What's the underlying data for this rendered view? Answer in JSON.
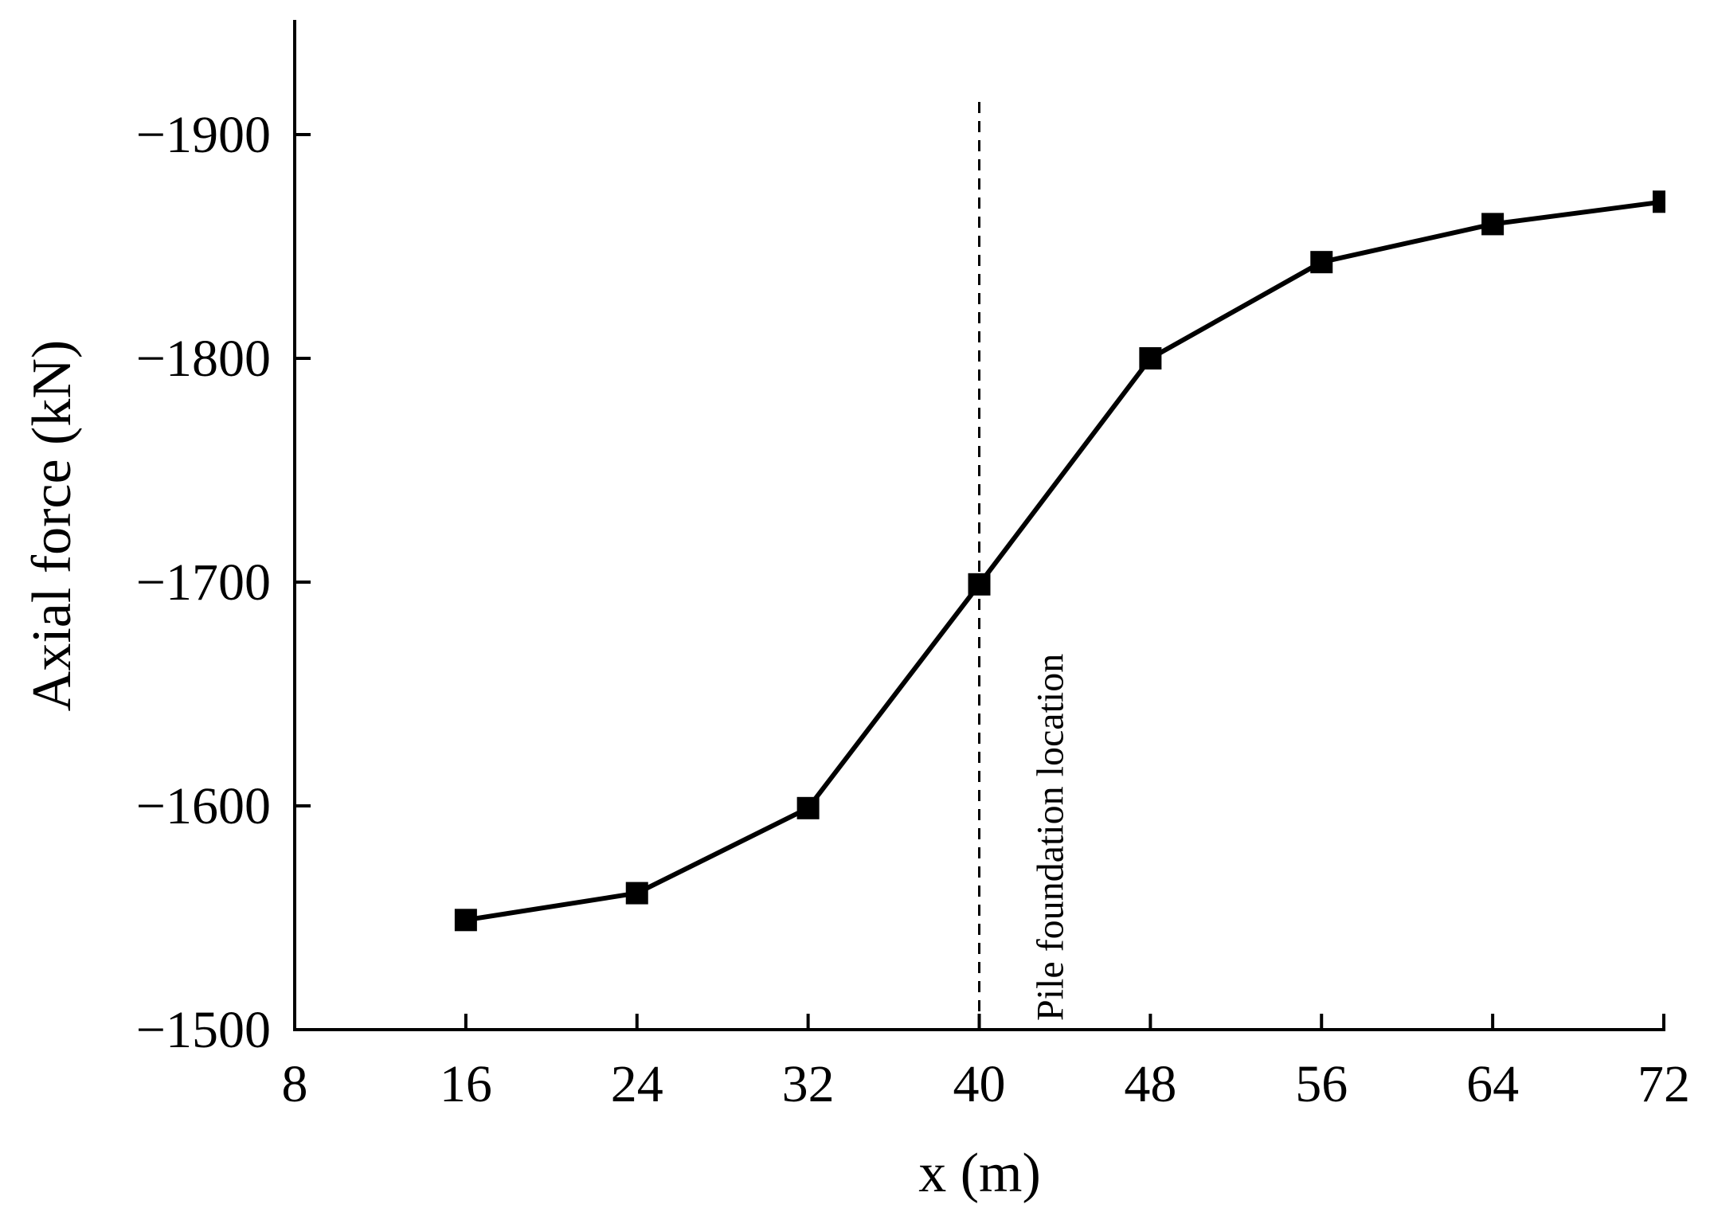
{
  "chart_data": {
    "type": "line",
    "title": "",
    "xlabel": "x (m)",
    "ylabel": "Axial force (kN)",
    "xlim": [
      8,
      72
    ],
    "ylim": [
      -1500,
      -1950
    ],
    "y_axis_inverted": true,
    "x_ticks": [
      8,
      16,
      24,
      32,
      40,
      48,
      56,
      64,
      72
    ],
    "y_ticks": [
      -1500,
      -1600,
      -1700,
      -1800,
      -1900
    ],
    "x_tick_labels": [
      "8",
      "16",
      "24",
      "32",
      "40",
      "48",
      "56",
      "64",
      "72"
    ],
    "y_tick_labels": [
      "−1500",
      "−1600",
      "−1700",
      "−1800",
      "−1900"
    ],
    "grid": false,
    "series": [
      {
        "x": [
          16,
          24,
          32,
          40,
          48,
          56,
          64,
          72
        ],
        "y": [
          -1549,
          -1561,
          -1599,
          -1699,
          -1800,
          -1843,
          -1860,
          -1870
        ],
        "marker": "square",
        "color": "#000000"
      }
    ],
    "annotations": [
      {
        "type": "vline",
        "x": 40,
        "style": "dashed",
        "text": "Pile foundation location"
      }
    ]
  }
}
